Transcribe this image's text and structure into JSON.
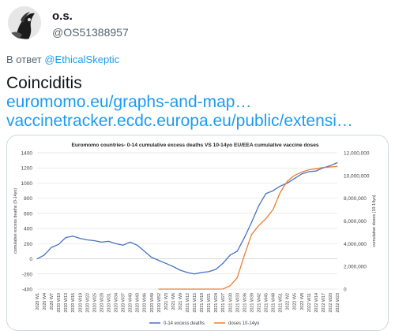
{
  "author": {
    "name": "o.s.",
    "handle": "@OS51388957"
  },
  "reply": {
    "prefix": "В ответ",
    "mention": "@EthicalSkeptic"
  },
  "tweet": {
    "text": "Coinciditis",
    "links": [
      "euromomo.eu/graphs-and-map…",
      "vaccinetracker.ecdc.europa.eu/public/extensi…"
    ]
  },
  "colors": {
    "link": "#1d9bf0",
    "series_deaths": "#4472c4",
    "series_doses": "#ed7d31"
  },
  "chart_data": {
    "type": "line",
    "title": "Euromomo  countries- 0-14 cumulative excess deaths VS 10-14yo EU/EEA cumulative vaccine doses",
    "ylabel_left": "cumulative excess deaths (0-14yo)",
    "ylabel_right": "cumulative doses (10-14yo)",
    "ylim_left": [
      -400,
      1400
    ],
    "ylim_right": [
      0,
      12000000
    ],
    "yticks_left": [
      "1400",
      "1200",
      "1000",
      "800",
      "600",
      "400",
      "200",
      "0",
      "-200",
      "-400"
    ],
    "yticks_right": [
      "12,000,000",
      "10,000,000",
      "8,000,000",
      "6,000,000",
      "4,000,000",
      "2,000,000",
      "0"
    ],
    "x_tick_labels": [
      "2020 W1",
      "2020 W4",
      "2020 W7",
      "2020 W10",
      "2020 W13",
      "2020 W16",
      "2020 W19",
      "2020 W22",
      "2020 W25",
      "2020 W28",
      "2020 W31",
      "2020 W34",
      "2020 W37",
      "2020 W40",
      "2020 W43",
      "2020 W46",
      "2020 W49",
      "2020 W52",
      "2021 W3",
      "2021 W6",
      "2021 W9",
      "2021 W12",
      "2021 W15",
      "2021 W18",
      "2021 W21",
      "2021 W24",
      "2021 W27",
      "2021 W30",
      "2021 W33",
      "2021 W36",
      "2021 W39",
      "2021 W42",
      "2021 W45",
      "2021 W48",
      "2021 W51",
      "2022 W2",
      "2022 W5",
      "2022 W8",
      "2022 W11",
      "2022 W14",
      "2022 W17",
      "2022 W20",
      "2022 W23"
    ],
    "grid": true,
    "legend_position": "bottom",
    "series": [
      {
        "name": "0-14 excess deaths",
        "axis": "left",
        "values": [
          0,
          50,
          150,
          190,
          280,
          300,
          270,
          250,
          240,
          220,
          230,
          200,
          180,
          220,
          180,
          100,
          20,
          -20,
          -60,
          -100,
          -150,
          -180,
          -200,
          -180,
          -170,
          -140,
          -60,
          50,
          100,
          280,
          480,
          700,
          860,
          900,
          960,
          1000,
          1060,
          1120,
          1150,
          1160,
          1200,
          1230,
          1270
        ]
      },
      {
        "name": "doses 10-14yo",
        "axis": "right",
        "values": [
          null,
          null,
          null,
          null,
          null,
          null,
          null,
          null,
          null,
          null,
          null,
          null,
          null,
          null,
          null,
          null,
          null,
          0,
          0,
          0,
          0,
          0,
          0,
          0,
          0,
          0,
          10000,
          300000,
          1000000,
          3000000,
          4800000,
          5600000,
          6200000,
          7000000,
          8500000,
          9500000,
          10000000,
          10300000,
          10500000,
          10600000,
          10700000,
          10750000,
          10800000
        ]
      }
    ]
  }
}
